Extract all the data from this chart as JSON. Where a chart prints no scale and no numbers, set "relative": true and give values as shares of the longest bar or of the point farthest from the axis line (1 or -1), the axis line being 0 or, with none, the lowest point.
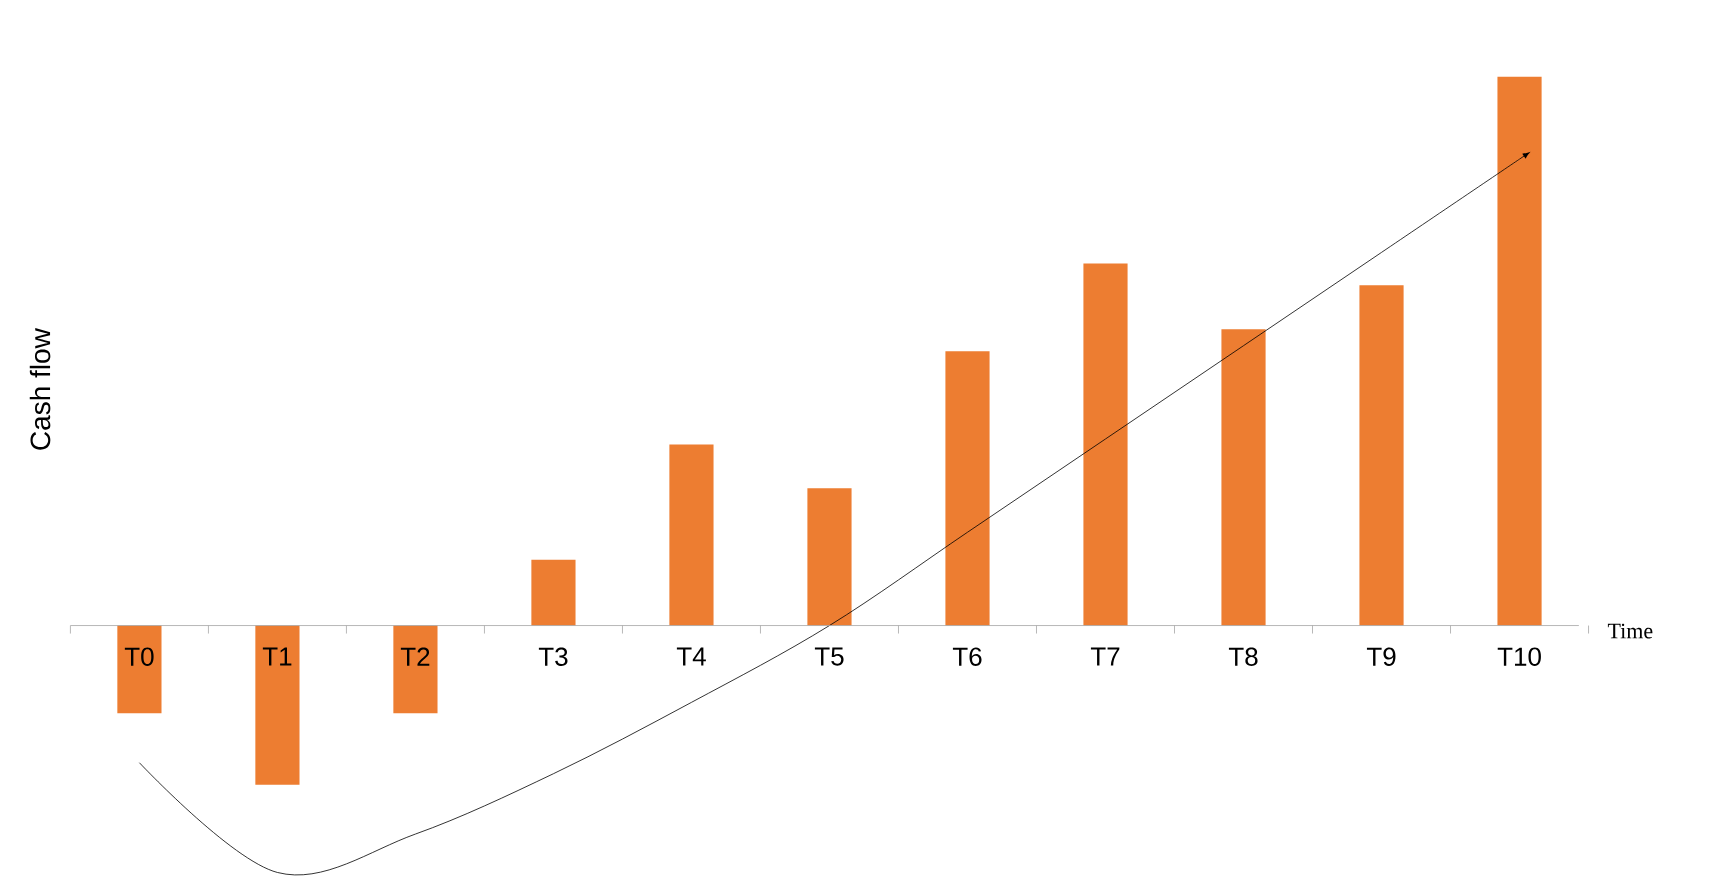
{
  "chart_data": {
    "type": "bar",
    "relative": true,
    "xlabel": "Time",
    "ylabel": "Cash flow",
    "categories": [
      "T0",
      "T1",
      "T2",
      "T3",
      "T4",
      "T5",
      "T6",
      "T7",
      "T8",
      "T9",
      "T10"
    ],
    "series": [
      {
        "color": "#ed7d31",
        "values": [
          -0.16,
          -0.29,
          -0.16,
          0.12,
          0.33,
          0.25,
          0.5,
          0.66,
          0.54,
          0.62,
          1
        ]
      },
      {
        "type": "line",
        "color": "#000000",
        "values": [
          -0.25,
          -0.45,
          -0.38,
          -0.27,
          -0.14,
          0,
          0.17,
          0.34,
          0.51,
          0.68,
          0.85
        ]
      }
    ]
  }
}
